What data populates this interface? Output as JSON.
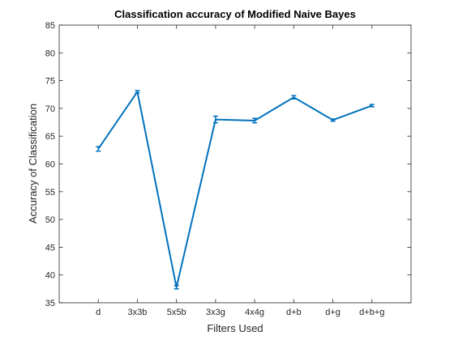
{
  "chart_data": {
    "type": "line",
    "title": "Classification accuracy of Modified Naive Bayes",
    "xlabel": "Filters Used",
    "ylabel": "Accuracy of Classification",
    "categories": [
      "d",
      "3x3b",
      "5x5b",
      "3x3g",
      "4x4g",
      "d+b",
      "d+g",
      "d+b+g"
    ],
    "xlim": [
      0,
      9
    ],
    "ylim": [
      35,
      85
    ],
    "yticks": [
      35,
      40,
      45,
      50,
      55,
      60,
      65,
      70,
      75,
      80,
      85
    ],
    "grid": false,
    "legend": "none",
    "series": [
      {
        "values": [
          62.7,
          73.0,
          37.8,
          68.0,
          67.8,
          72.0,
          67.9,
          70.5
        ],
        "errors": [
          0.4,
          0.2,
          0.3,
          0.6,
          0.4,
          0.3,
          0.2,
          0.2
        ],
        "color": "#0072BD",
        "marker": "error-bar"
      }
    ]
  }
}
